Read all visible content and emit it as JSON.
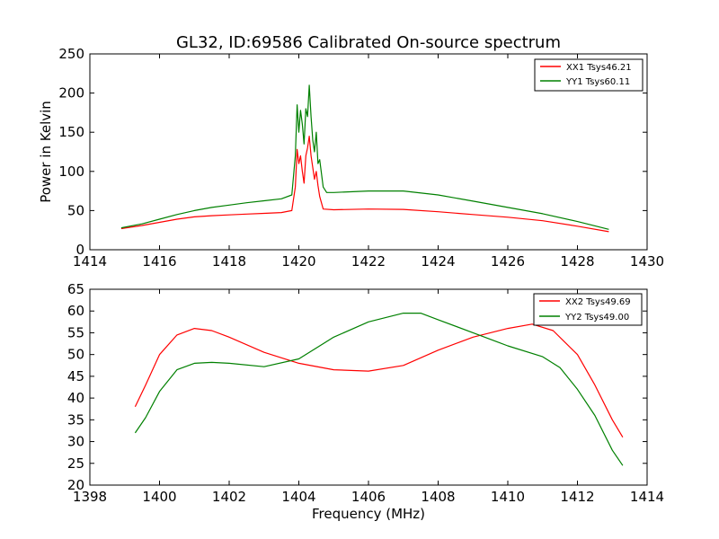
{
  "chart_data": [
    {
      "type": "line",
      "title": "GL32, ID:69586 Calibrated On-source spectrum",
      "xlabel": "",
      "ylabel": "Power in Kelvin",
      "xlim": [
        1414,
        1430
      ],
      "ylim": [
        0,
        250
      ],
      "xticks": [
        1414,
        1416,
        1418,
        1420,
        1422,
        1424,
        1426,
        1428,
        1430
      ],
      "yticks": [
        0,
        50,
        100,
        150,
        200,
        250
      ],
      "grid": false,
      "legend_position": "top-right",
      "series": [
        {
          "name": "XX1 Tsys46.21",
          "color": "#ff0000",
          "points": [
            [
              1414.9,
              27
            ],
            [
              1415.5,
              31
            ],
            [
              1416,
              35
            ],
            [
              1416.5,
              39
            ],
            [
              1417,
              42
            ],
            [
              1417.5,
              43.5
            ],
            [
              1418,
              44.5
            ],
            [
              1418.5,
              45.5
            ],
            [
              1419,
              46.5
            ],
            [
              1419.5,
              47.5
            ],
            [
              1419.8,
              50
            ],
            [
              1419.9,
              80
            ],
            [
              1419.95,
              128
            ],
            [
              1420.0,
              110
            ],
            [
              1420.05,
              120
            ],
            [
              1420.1,
              100
            ],
            [
              1420.15,
              85
            ],
            [
              1420.2,
              120
            ],
            [
              1420.25,
              130
            ],
            [
              1420.3,
              145
            ],
            [
              1420.35,
              120
            ],
            [
              1420.45,
              90
            ],
            [
              1420.5,
              100
            ],
            [
              1420.55,
              82
            ],
            [
              1420.6,
              68
            ],
            [
              1420.7,
              52
            ],
            [
              1421,
              51
            ],
            [
              1422,
              52
            ],
            [
              1423,
              51.5
            ],
            [
              1424,
              48.5
            ],
            [
              1425,
              45
            ],
            [
              1426,
              41.5
            ],
            [
              1427,
              37
            ],
            [
              1428,
              30
            ],
            [
              1428.9,
              23
            ]
          ]
        },
        {
          "name": "YY1 Tsys60.11",
          "color": "#008000",
          "points": [
            [
              1414.9,
              28
            ],
            [
              1415.5,
              33
            ],
            [
              1416,
              39
            ],
            [
              1416.5,
              45
            ],
            [
              1417,
              50
            ],
            [
              1417.5,
              54
            ],
            [
              1418,
              57
            ],
            [
              1418.5,
              60
            ],
            [
              1419,
              62.5
            ],
            [
              1419.5,
              65
            ],
            [
              1419.8,
              70
            ],
            [
              1419.9,
              120
            ],
            [
              1419.95,
              185
            ],
            [
              1420.0,
              150
            ],
            [
              1420.05,
              178
            ],
            [
              1420.1,
              160
            ],
            [
              1420.15,
              135
            ],
            [
              1420.2,
              180
            ],
            [
              1420.25,
              170
            ],
            [
              1420.3,
              210
            ],
            [
              1420.35,
              170
            ],
            [
              1420.4,
              140
            ],
            [
              1420.45,
              125
            ],
            [
              1420.5,
              150
            ],
            [
              1420.55,
              110
            ],
            [
              1420.6,
              115
            ],
            [
              1420.7,
              80
            ],
            [
              1420.8,
              73
            ],
            [
              1421,
              73
            ],
            [
              1422,
              75
            ],
            [
              1423,
              75
            ],
            [
              1424,
              70
            ],
            [
              1425,
              62
            ],
            [
              1426,
              54
            ],
            [
              1427,
              46
            ],
            [
              1428,
              36
            ],
            [
              1428.9,
              26
            ]
          ]
        }
      ]
    },
    {
      "type": "line",
      "title": "",
      "xlabel": "Frequency (MHz)",
      "ylabel": "",
      "xlim": [
        1398,
        1414
      ],
      "ylim": [
        20,
        65
      ],
      "xticks": [
        1398,
        1400,
        1402,
        1404,
        1406,
        1408,
        1410,
        1412,
        1414
      ],
      "yticks": [
        20,
        25,
        30,
        35,
        40,
        45,
        50,
        55,
        60,
        65
      ],
      "grid": false,
      "legend_position": "top-right",
      "series": [
        {
          "name": "XX2 Tsys49.69",
          "color": "#ff0000",
          "points": [
            [
              1399.3,
              38
            ],
            [
              1399.6,
              43
            ],
            [
              1400,
              50
            ],
            [
              1400.5,
              54.5
            ],
            [
              1401,
              56
            ],
            [
              1401.5,
              55.5
            ],
            [
              1402,
              54
            ],
            [
              1403,
              50.5
            ],
            [
              1404,
              48
            ],
            [
              1405,
              46.5
            ],
            [
              1406,
              46.2
            ],
            [
              1407,
              47.5
            ],
            [
              1408,
              51
            ],
            [
              1409,
              54
            ],
            [
              1410,
              56
            ],
            [
              1410.7,
              57
            ],
            [
              1411.3,
              55.5
            ],
            [
              1412,
              50
            ],
            [
              1412.5,
              43
            ],
            [
              1413,
              35
            ],
            [
              1413.3,
              31
            ]
          ]
        },
        {
          "name": "YY2 Tsys49.00",
          "color": "#008000",
          "points": [
            [
              1399.3,
              32
            ],
            [
              1399.6,
              35.5
            ],
            [
              1400,
              41.5
            ],
            [
              1400.5,
              46.5
            ],
            [
              1401,
              48
            ],
            [
              1401.5,
              48.2
            ],
            [
              1402,
              48
            ],
            [
              1403,
              47.2
            ],
            [
              1404,
              49
            ],
            [
              1405,
              54
            ],
            [
              1406,
              57.5
            ],
            [
              1407,
              59.5
            ],
            [
              1407.5,
              59.5
            ],
            [
              1408,
              58
            ],
            [
              1409,
              55
            ],
            [
              1410,
              52
            ],
            [
              1411,
              49.5
            ],
            [
              1411.5,
              47
            ],
            [
              1412,
              42
            ],
            [
              1412.5,
              36
            ],
            [
              1413,
              28
            ],
            [
              1413.3,
              24.5
            ]
          ]
        }
      ]
    }
  ]
}
